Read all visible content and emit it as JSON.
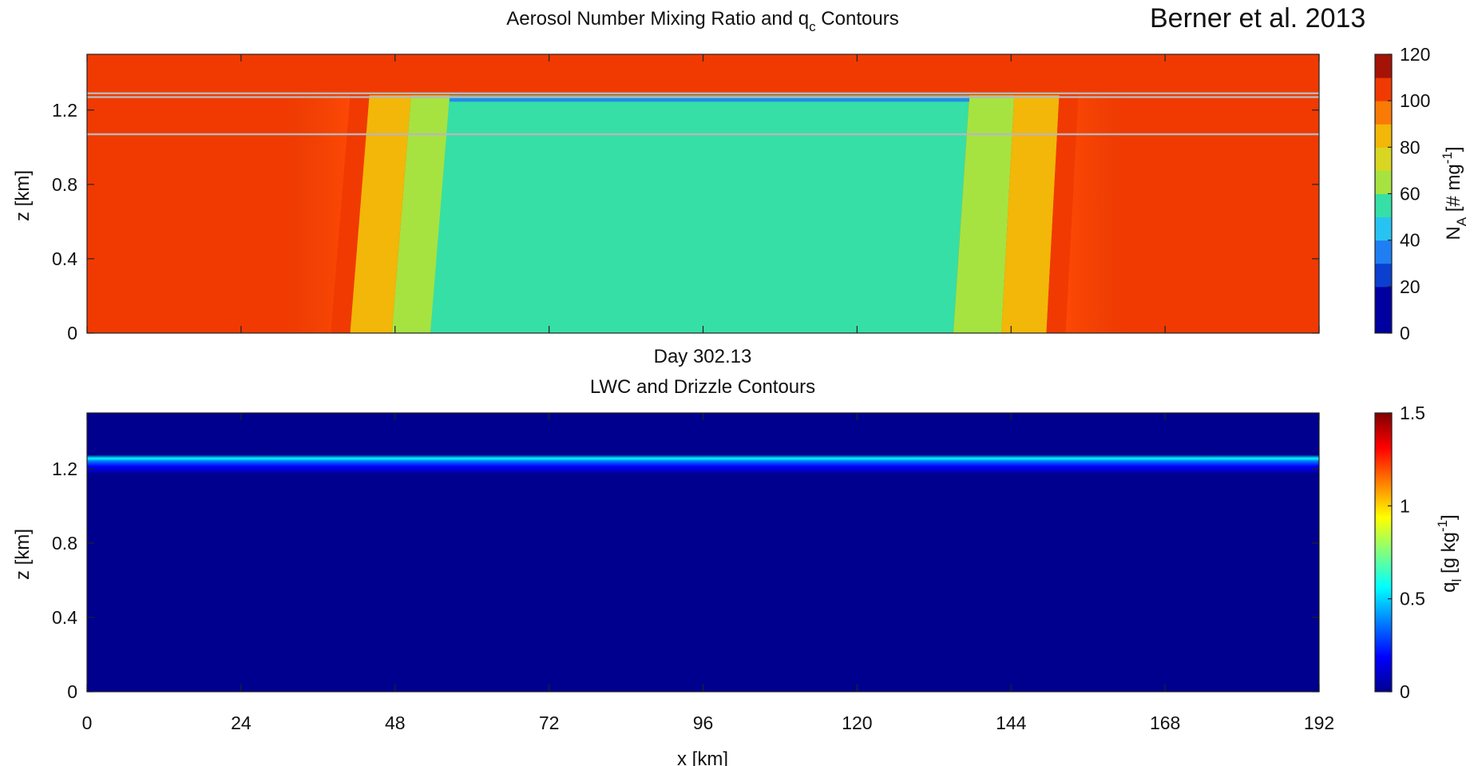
{
  "corner_text": "Berner et al. 2013",
  "chart_data": [
    {
      "type": "heatmap",
      "title": "Aerosol Number Mixing Ratio and q",
      "title_sub": "c",
      "title_tail": " Contours",
      "subtitle": "",
      "xlabel": "",
      "ylabel": "z [km]",
      "xlim": [
        0,
        192
      ],
      "ylim": [
        0,
        1.5
      ],
      "x_ticks": [
        "0",
        "24",
        "48",
        "72",
        "96",
        "120",
        "144",
        "168",
        "192"
      ],
      "x_tick_values": [
        0,
        24,
        48,
        72,
        96,
        120,
        144,
        168,
        192
      ],
      "show_x_tick_labels": false,
      "y_ticks": [
        "0",
        "0.4",
        "0.8",
        "1.2"
      ],
      "y_tick_values": [
        0,
        0.4,
        0.8,
        1.2
      ],
      "colorbar": {
        "label_main": "N",
        "label_sub": "A",
        "label_unit": " [# mg",
        "label_sup": "-1",
        "label_close": "]",
        "range": [
          0,
          120
        ],
        "ticks": [
          "0",
          "20",
          "40",
          "60",
          "80",
          "100",
          "120"
        ],
        "tick_values": [
          0,
          20,
          40,
          60,
          80,
          100,
          120
        ],
        "levels": [
          {
            "from": 0,
            "to": 20,
            "color": "#0000a0"
          },
          {
            "from": 20,
            "to": 30,
            "color": "#0a3fd0"
          },
          {
            "from": 30,
            "to": 40,
            "color": "#1e7ef2"
          },
          {
            "from": 40,
            "to": 50,
            "color": "#27c3f2"
          },
          {
            "from": 50,
            "to": 60,
            "color": "#36dfa6"
          },
          {
            "from": 60,
            "to": 70,
            "color": "#a6e340"
          },
          {
            "from": 70,
            "to": 80,
            "color": "#d8d622"
          },
          {
            "from": 80,
            "to": 90,
            "color": "#f2b708"
          },
          {
            "from": 90,
            "to": 100,
            "color": "#fa7a06"
          },
          {
            "from": 100,
            "to": 110,
            "color": "#f03a02"
          },
          {
            "from": 110,
            "to": 120,
            "color": "#a51206"
          }
        ]
      },
      "background_value": 105,
      "top_layer": {
        "z_from": 1.28,
        "z_to": 1.5,
        "value": 108
      },
      "bands_left": [
        {
          "x_bottom_from": 38,
          "x_bottom_to": 41,
          "x_top_from": 41,
          "x_top_to": 44,
          "value": 100
        },
        {
          "x_bottom_from": 41,
          "x_bottom_to": 47.5,
          "x_top_from": 44,
          "x_top_to": 50.5,
          "value": 84
        },
        {
          "x_bottom_from": 47.5,
          "x_bottom_to": 53.5,
          "x_top_from": 50.5,
          "x_top_to": 57,
          "value": 67
        },
        {
          "x_bottom_from": 53.5,
          "x_bottom_to": 56,
          "x_top_from": 57,
          "x_top_to": 58,
          "value": 66
        }
      ],
      "core": {
        "x_bottom_from": 53.5,
        "x_bottom_to": 135,
        "x_top_from": 56.5,
        "x_top_to": 137.5,
        "value": 52
      },
      "bands_right": [
        {
          "x_bottom_from": 135,
          "x_bottom_to": 142.5,
          "x_top_from": 137.5,
          "x_top_to": 144.5,
          "value": 67
        },
        {
          "x_bottom_from": 142.5,
          "x_bottom_to": 149.5,
          "x_top_from": 144.5,
          "x_top_to": 151.5,
          "value": 84
        },
        {
          "x_bottom_from": 149.5,
          "x_bottom_to": 152.5,
          "x_top_from": 151.5,
          "x_top_to": 154.5,
          "value": 100
        }
      ],
      "inversion_strip": {
        "z_from": 1.245,
        "z_to": 1.275,
        "value": 38
      },
      "qc_contours": [
        1.07,
        1.27,
        1.29
      ]
    },
    {
      "type": "heatmap",
      "title": "LWC and Drizzle Contours",
      "subtitle": "Day 302.13",
      "xlabel": "x [km]",
      "ylabel": "z [km]",
      "xlim": [
        0,
        192
      ],
      "ylim": [
        0,
        1.5
      ],
      "x_ticks": [
        "0",
        "24",
        "48",
        "72",
        "96",
        "120",
        "144",
        "168",
        "192"
      ],
      "x_tick_values": [
        0,
        24,
        48,
        72,
        96,
        120,
        144,
        168,
        192
      ],
      "show_x_tick_labels": true,
      "y_ticks": [
        "0",
        "0.4",
        "0.8",
        "1.2"
      ],
      "y_tick_values": [
        0,
        0.4,
        0.8,
        1.2
      ],
      "colorbar": {
        "label_main": "q",
        "label_sub": "l",
        "label_unit": " [g kg",
        "label_sup": "-1",
        "label_close": "]",
        "range": [
          0,
          1.5
        ],
        "ticks": [
          "0",
          "0.5",
          "1",
          "1.5"
        ],
        "tick_values": [
          0,
          0.5,
          1,
          1.5
        ],
        "gradient": [
          "#00008f",
          "#0000ff",
          "#007fff",
          "#00ffff",
          "#7fff7f",
          "#ffff00",
          "#ff7f00",
          "#ff0000",
          "#7f0000"
        ]
      },
      "background_value": 0,
      "cloud_layer": {
        "z_base": 1.17,
        "z_peak": 1.255,
        "z_top": 1.275,
        "peak_value": 0.5
      }
    }
  ]
}
